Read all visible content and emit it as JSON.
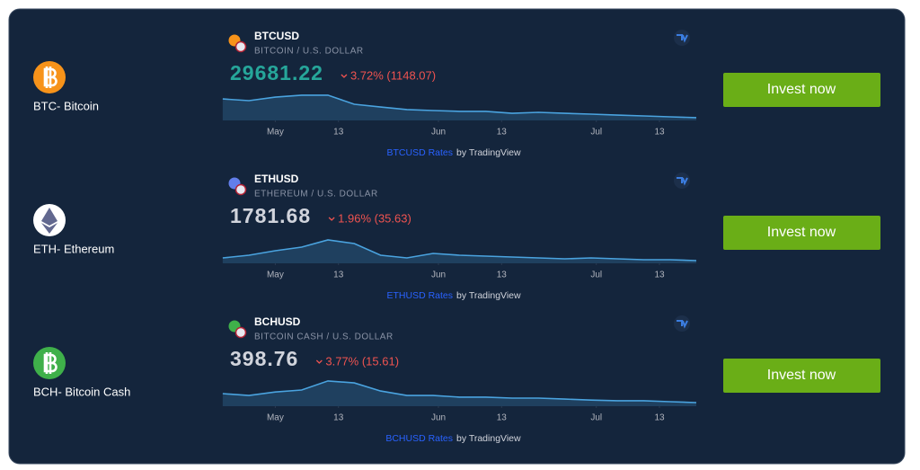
{
  "rows": [
    {
      "coin": {
        "label": "BTC- Bitcoin"
      },
      "widget": {
        "symbol": "BTCUSD",
        "description": "BITCOIN / U.S. DOLLAR",
        "price": 29681.22,
        "change": "3.72% (1148.07)",
        "attribution_link": "BTCUSD Rates",
        "attribution_text": "by TradingView",
        "chart": {
          "type": "area",
          "color": "#4aa3df",
          "x": [
            -10,
            -5,
            0,
            5,
            10,
            15,
            20,
            25,
            30,
            35,
            40,
            45,
            50,
            55,
            60,
            65,
            70,
            75,
            80
          ],
          "values": [
            30830,
            30720,
            30940,
            31060,
            31060,
            30500,
            30330,
            30170,
            30110,
            30060,
            30060,
            29940,
            30000,
            29940,
            29890,
            29830,
            29780,
            29720,
            29670
          ],
          "xlim": [
            -11,
            80
          ],
          "ylim": [
            29500,
            31500
          ],
          "xticks": [
            {
              "value": 0,
              "label": "May"
            },
            {
              "value": 12,
              "label": "13"
            },
            {
              "value": 31,
              "label": "Jun"
            },
            {
              "value": 43,
              "label": "13"
            },
            {
              "value": 61,
              "label": "Jul"
            },
            {
              "value": 73,
              "label": "13"
            }
          ]
        }
      },
      "button": "Invest now"
    },
    {
      "coin": {
        "label": "ETH- Ethereum"
      },
      "widget": {
        "symbol": "ETHUSD",
        "description": "ETHEREUM / U.S. DOLLAR",
        "price": 1781.68,
        "change": "1.96% (35.63)",
        "attribution_link": "ETHUSD Rates",
        "attribution_text": "by TradingView",
        "chart": {
          "type": "area",
          "color": "#4aa3df",
          "x": [
            -10,
            -5,
            0,
            5,
            10,
            15,
            20,
            25,
            30,
            35,
            40,
            45,
            50,
            55,
            60,
            65,
            70,
            75,
            80
          ],
          "values": [
            1800,
            1825,
            1867,
            1900,
            1967,
            1933,
            1825,
            1800,
            1842,
            1825,
            1817,
            1808,
            1800,
            1792,
            1800,
            1792,
            1783,
            1783,
            1775
          ],
          "xlim": [
            -11,
            80
          ],
          "ylim": [
            1750,
            2050
          ],
          "xticks": [
            {
              "value": 0,
              "label": "May"
            },
            {
              "value": 12,
              "label": "13"
            },
            {
              "value": 31,
              "label": "Jun"
            },
            {
              "value": 43,
              "label": "13"
            },
            {
              "value": 61,
              "label": "Jul"
            },
            {
              "value": 73,
              "label": "13"
            }
          ]
        }
      },
      "button": "Invest now"
    },
    {
      "coin": {
        "label": "BCH- Bitcoin Cash"
      },
      "widget": {
        "symbol": "BCHUSD",
        "description": "BITCOIN CASH / U.S. DOLLAR",
        "price": 398.76,
        "change": "3.77% (15.61)",
        "attribution_link": "BCHUSD Rates",
        "attribution_text": "by TradingView",
        "chart": {
          "type": "area",
          "color": "#4aa3df",
          "x": [
            -10,
            -5,
            0,
            5,
            10,
            15,
            20,
            25,
            30,
            35,
            40,
            45,
            50,
            55,
            60,
            65,
            70,
            75,
            80
          ],
          "values": [
            419,
            413,
            424,
            430,
            458,
            452,
            427,
            413,
            413,
            408,
            408,
            405,
            405,
            402,
            399,
            397,
            397,
            394,
            391
          ],
          "xlim": [
            -11,
            80
          ],
          "ylim": [
            380,
            480
          ],
          "xticks": [
            {
              "value": 0,
              "label": "May"
            },
            {
              "value": 12,
              "label": "13"
            },
            {
              "value": 31,
              "label": "Jun"
            },
            {
              "value": 43,
              "label": "13"
            },
            {
              "value": 61,
              "label": "Jul"
            },
            {
              "value": 73,
              "label": "13"
            }
          ]
        }
      },
      "button": "Invest now"
    }
  ]
}
